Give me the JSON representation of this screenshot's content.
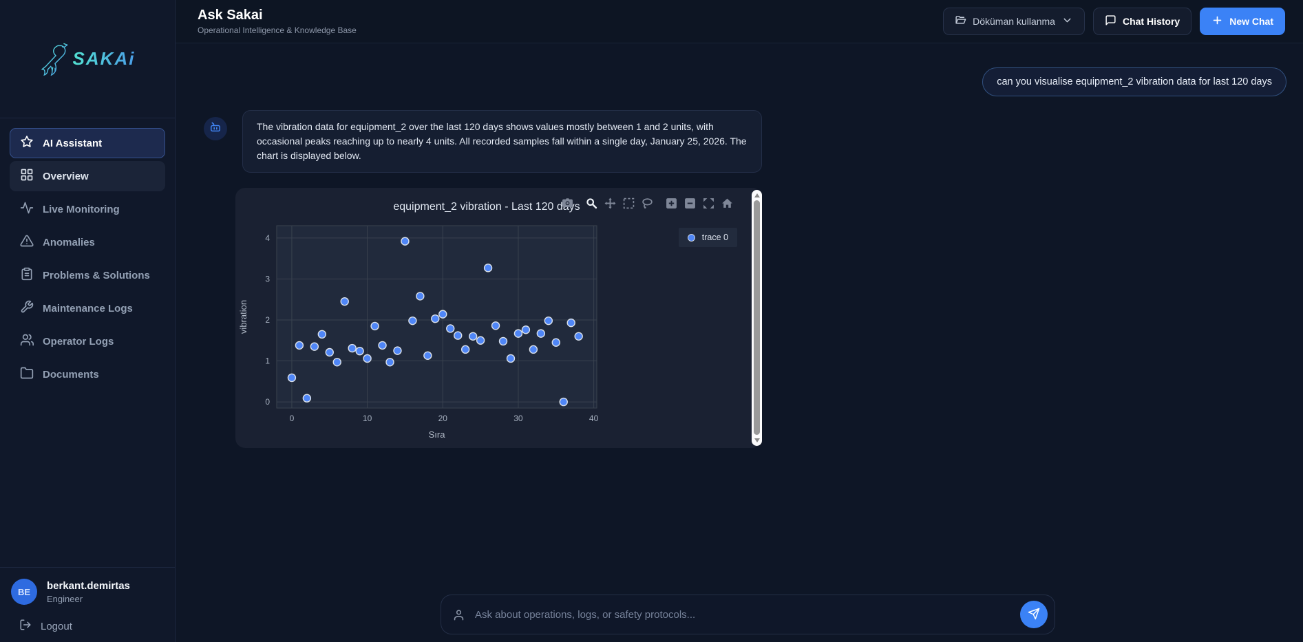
{
  "sidebar": {
    "logo_text": "SAKAi",
    "items": [
      {
        "label": "AI Assistant",
        "icon": "star-icon",
        "state": "active"
      },
      {
        "label": "Overview",
        "icon": "grid-icon",
        "state": "highlight"
      },
      {
        "label": "Live Monitoring",
        "icon": "activity-icon",
        "state": ""
      },
      {
        "label": "Anomalies",
        "icon": "warning-icon",
        "state": ""
      },
      {
        "label": "Problems & Solutions",
        "icon": "clipboard-icon",
        "state": ""
      },
      {
        "label": "Maintenance Logs",
        "icon": "wrench-icon",
        "state": ""
      },
      {
        "label": "Operator Logs",
        "icon": "users-icon",
        "state": ""
      },
      {
        "label": "Documents",
        "icon": "folder-icon",
        "state": ""
      }
    ],
    "user": {
      "initials": "BE",
      "name": "berkant.demirtas",
      "role": "Engineer"
    },
    "logout_label": "Logout"
  },
  "header": {
    "title": "Ask Sakai",
    "subtitle": "Operational Intelligence & Knowledge Base",
    "doc_button": "Döküman kullanma",
    "chat_history_button": "Chat History",
    "new_chat_button": "New Chat"
  },
  "chat": {
    "user_message": "can you visualise equipment_2 vibration data for last 120 days",
    "ai_message": "The vibration data for equipment_2 over the last 120 days shows values mostly between 1 and 2 units, with occasional peaks reaching up to nearly 4 units. All recorded samples fall within a single day, January 25, 2026. The chart is displayed below.",
    "input_placeholder": "Ask about operations, logs, or safety protocols..."
  },
  "chart_toolbar": {
    "icons": [
      "camera-icon",
      "zoom-icon",
      "pan-icon",
      "box-select-icon",
      "lasso-select-icon",
      "zoom-in-icon",
      "zoom-out-icon",
      "autoscale-icon",
      "reset-axes-icon"
    ],
    "active": "zoom-icon"
  },
  "chart_data": {
    "type": "scatter",
    "title": "equipment_2 vibration - Last 120 days",
    "xlabel": "Sıra",
    "ylabel": "vibration",
    "legend": [
      {
        "name": "trace 0"
      }
    ],
    "legend_position": "top-right",
    "xticks": [
      0,
      10,
      20,
      30,
      40
    ],
    "yticks": [
      0,
      1,
      2,
      3,
      4
    ],
    "xlim": [
      -2.0,
      40.4
    ],
    "ylim": [
      -0.15,
      4.3
    ],
    "grid": true,
    "marker_color": "#4f86f7",
    "x": [
      0,
      1,
      2,
      3,
      4,
      5,
      6,
      7,
      8,
      9,
      10,
      11,
      12,
      13,
      14,
      15,
      16,
      17,
      18,
      19,
      20,
      21,
      22,
      23,
      24,
      25,
      26,
      27,
      28,
      29,
      30,
      31,
      32,
      33,
      34,
      35,
      36,
      37,
      38
    ],
    "y": [
      0.59,
      1.38,
      0.09,
      1.35,
      1.65,
      1.21,
      0.97,
      2.45,
      1.31,
      1.24,
      1.06,
      1.85,
      1.38,
      0.97,
      1.25,
      3.92,
      1.98,
      2.58,
      1.13,
      2.03,
      2.14,
      1.79,
      1.62,
      1.28,
      1.6,
      1.5,
      3.27,
      1.86,
      1.48,
      1.06,
      1.67,
      1.76,
      1.28,
      1.67,
      1.98,
      1.45,
      0.0,
      1.93,
      1.6
    ]
  },
  "colors": {
    "accent": "#3b82f6",
    "marker": "#4f86f7",
    "plot_bg": "#212a3c",
    "grid_line": "#39424f",
    "card_bg": "#1a2132"
  }
}
